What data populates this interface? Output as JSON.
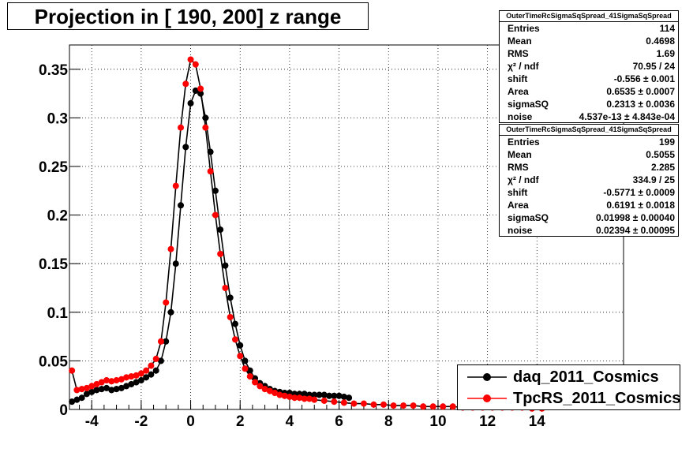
{
  "chart_data": {
    "type": "scatter",
    "title": "Projection in [ 190, 200] z range",
    "xlim": [
      -4.9,
      17.5
    ],
    "ylim": [
      0,
      0.375
    ],
    "x_ticks": [
      "-4",
      "-2",
      "0",
      "2",
      "4",
      "6",
      "8",
      "10",
      "12",
      "14"
    ],
    "x_tick_values": [
      -4,
      -2,
      0,
      2,
      4,
      6,
      8,
      10,
      12,
      14
    ],
    "y_ticks": [
      "0",
      "0.05",
      "0.1",
      "0.15",
      "0.2",
      "0.25",
      "0.3",
      "0.35"
    ],
    "y_tick_values": [
      0,
      0.05,
      0.1,
      0.15,
      0.2,
      0.25,
      0.3,
      0.35
    ],
    "grid": true,
    "legend_position": "bottom-right",
    "series": [
      {
        "name": "daq_2011_Cosmics",
        "color": "#000000",
        "x": [
          -4.8,
          -4.6,
          -4.4,
          -4.2,
          -4.0,
          -3.8,
          -3.6,
          -3.4,
          -3.2,
          -3.0,
          -2.8,
          -2.6,
          -2.4,
          -2.2,
          -2.0,
          -1.8,
          -1.6,
          -1.4,
          -1.2,
          -1.0,
          -0.8,
          -0.6,
          -0.4,
          -0.2,
          0.0,
          0.2,
          0.4,
          0.6,
          0.8,
          1.0,
          1.2,
          1.4,
          1.6,
          1.8,
          2.0,
          2.2,
          2.4,
          2.6,
          2.8,
          3.0,
          3.2,
          3.4,
          3.6,
          3.8,
          4.0,
          4.2,
          4.4,
          4.6,
          4.8,
          5.0,
          5.2,
          5.4,
          5.6,
          5.8,
          6.0,
          6.2,
          6.4
        ],
        "values": [
          0.008,
          0.01,
          0.012,
          0.016,
          0.018,
          0.02,
          0.021,
          0.022,
          0.02,
          0.021,
          0.022,
          0.024,
          0.026,
          0.028,
          0.03,
          0.033,
          0.036,
          0.04,
          0.05,
          0.07,
          0.1,
          0.15,
          0.21,
          0.27,
          0.315,
          0.328,
          0.325,
          0.3,
          0.265,
          0.225,
          0.185,
          0.148,
          0.115,
          0.088,
          0.066,
          0.05,
          0.04,
          0.032,
          0.027,
          0.024,
          0.021,
          0.019,
          0.018,
          0.017,
          0.017,
          0.016,
          0.016,
          0.016,
          0.015,
          0.015,
          0.015,
          0.015,
          0.014,
          0.014,
          0.014,
          0.013,
          0.012
        ]
      },
      {
        "name": "TpcRS_2011_Cosmics",
        "color": "#ff0000",
        "x": [
          -4.8,
          -4.6,
          -4.4,
          -4.2,
          -4.0,
          -3.8,
          -3.6,
          -3.4,
          -3.2,
          -3.0,
          -2.8,
          -2.6,
          -2.4,
          -2.2,
          -2.0,
          -1.8,
          -1.6,
          -1.4,
          -1.2,
          -1.0,
          -0.8,
          -0.6,
          -0.4,
          -0.2,
          0.0,
          0.2,
          0.4,
          0.6,
          0.8,
          1.0,
          1.2,
          1.4,
          1.6,
          1.8,
          2.0,
          2.2,
          2.4,
          2.6,
          2.8,
          3.0,
          3.2,
          3.4,
          3.6,
          3.8,
          4.0,
          4.2,
          4.4,
          4.6,
          4.8,
          5.0,
          5.4,
          5.8,
          6.2,
          6.6,
          7.0,
          7.4,
          7.8,
          8.2,
          8.6,
          9.0,
          9.4,
          9.8,
          10.2,
          10.6,
          11.0,
          11.4,
          11.8,
          12.2,
          12.6,
          13.0,
          13.4,
          13.8,
          14.2
        ],
        "values": [
          0.04,
          0.02,
          0.021,
          0.022,
          0.024,
          0.026,
          0.028,
          0.03,
          0.029,
          0.03,
          0.031,
          0.033,
          0.034,
          0.035,
          0.037,
          0.04,
          0.045,
          0.052,
          0.07,
          0.11,
          0.165,
          0.23,
          0.29,
          0.335,
          0.36,
          0.355,
          0.33,
          0.29,
          0.245,
          0.2,
          0.16,
          0.125,
          0.095,
          0.072,
          0.055,
          0.042,
          0.034,
          0.028,
          0.024,
          0.021,
          0.019,
          0.017,
          0.015,
          0.014,
          0.013,
          0.012,
          0.012,
          0.011,
          0.011,
          0.01,
          0.009,
          0.008,
          0.007,
          0.006,
          0.006,
          0.005,
          0.005,
          0.004,
          0.004,
          0.004,
          0.003,
          0.003,
          0.003,
          0.003,
          0.002,
          0.002,
          0.002,
          0.002,
          0.002,
          0.002,
          0.002,
          0.001,
          0.001
        ]
      }
    ]
  },
  "stats": [
    {
      "header": "OuterTimeRcSigmaSqSpread_41SigmaSqSpread",
      "rows": [
        {
          "key": "Entries",
          "value": "114"
        },
        {
          "key": "Mean",
          "value": "0.4698"
        },
        {
          "key": "RMS",
          "value": "1.69"
        },
        {
          "key": "χ² / ndf",
          "value": "70.95 / 24"
        },
        {
          "key": "shift",
          "value": "-0.556 ± 0.001"
        },
        {
          "key": "Area",
          "value": "0.6535 ± 0.0007"
        },
        {
          "key": "sigmaSQ",
          "value": "0.2313 ± 0.0036"
        },
        {
          "key": "noise",
          "value": "4.537e-13 ± 4.843e-04"
        }
      ]
    },
    {
      "header": "OuterTimeRcSigmaSqSpread_41SigmaSqSpread",
      "rows": [
        {
          "key": "Entries",
          "value": "199"
        },
        {
          "key": "Mean",
          "value": "0.5055"
        },
        {
          "key": "RMS",
          "value": "2.285"
        },
        {
          "key": "χ² / ndf",
          "value": "334.9 / 25"
        },
        {
          "key": "shift",
          "value": "-0.5771 ± 0.0009"
        },
        {
          "key": "Area",
          "value": "0.6191 ± 0.0018"
        },
        {
          "key": "sigmaSQ",
          "value": "0.01998 ± 0.00040"
        },
        {
          "key": "noise",
          "value": "0.02394 ± 0.00095"
        }
      ]
    }
  ]
}
